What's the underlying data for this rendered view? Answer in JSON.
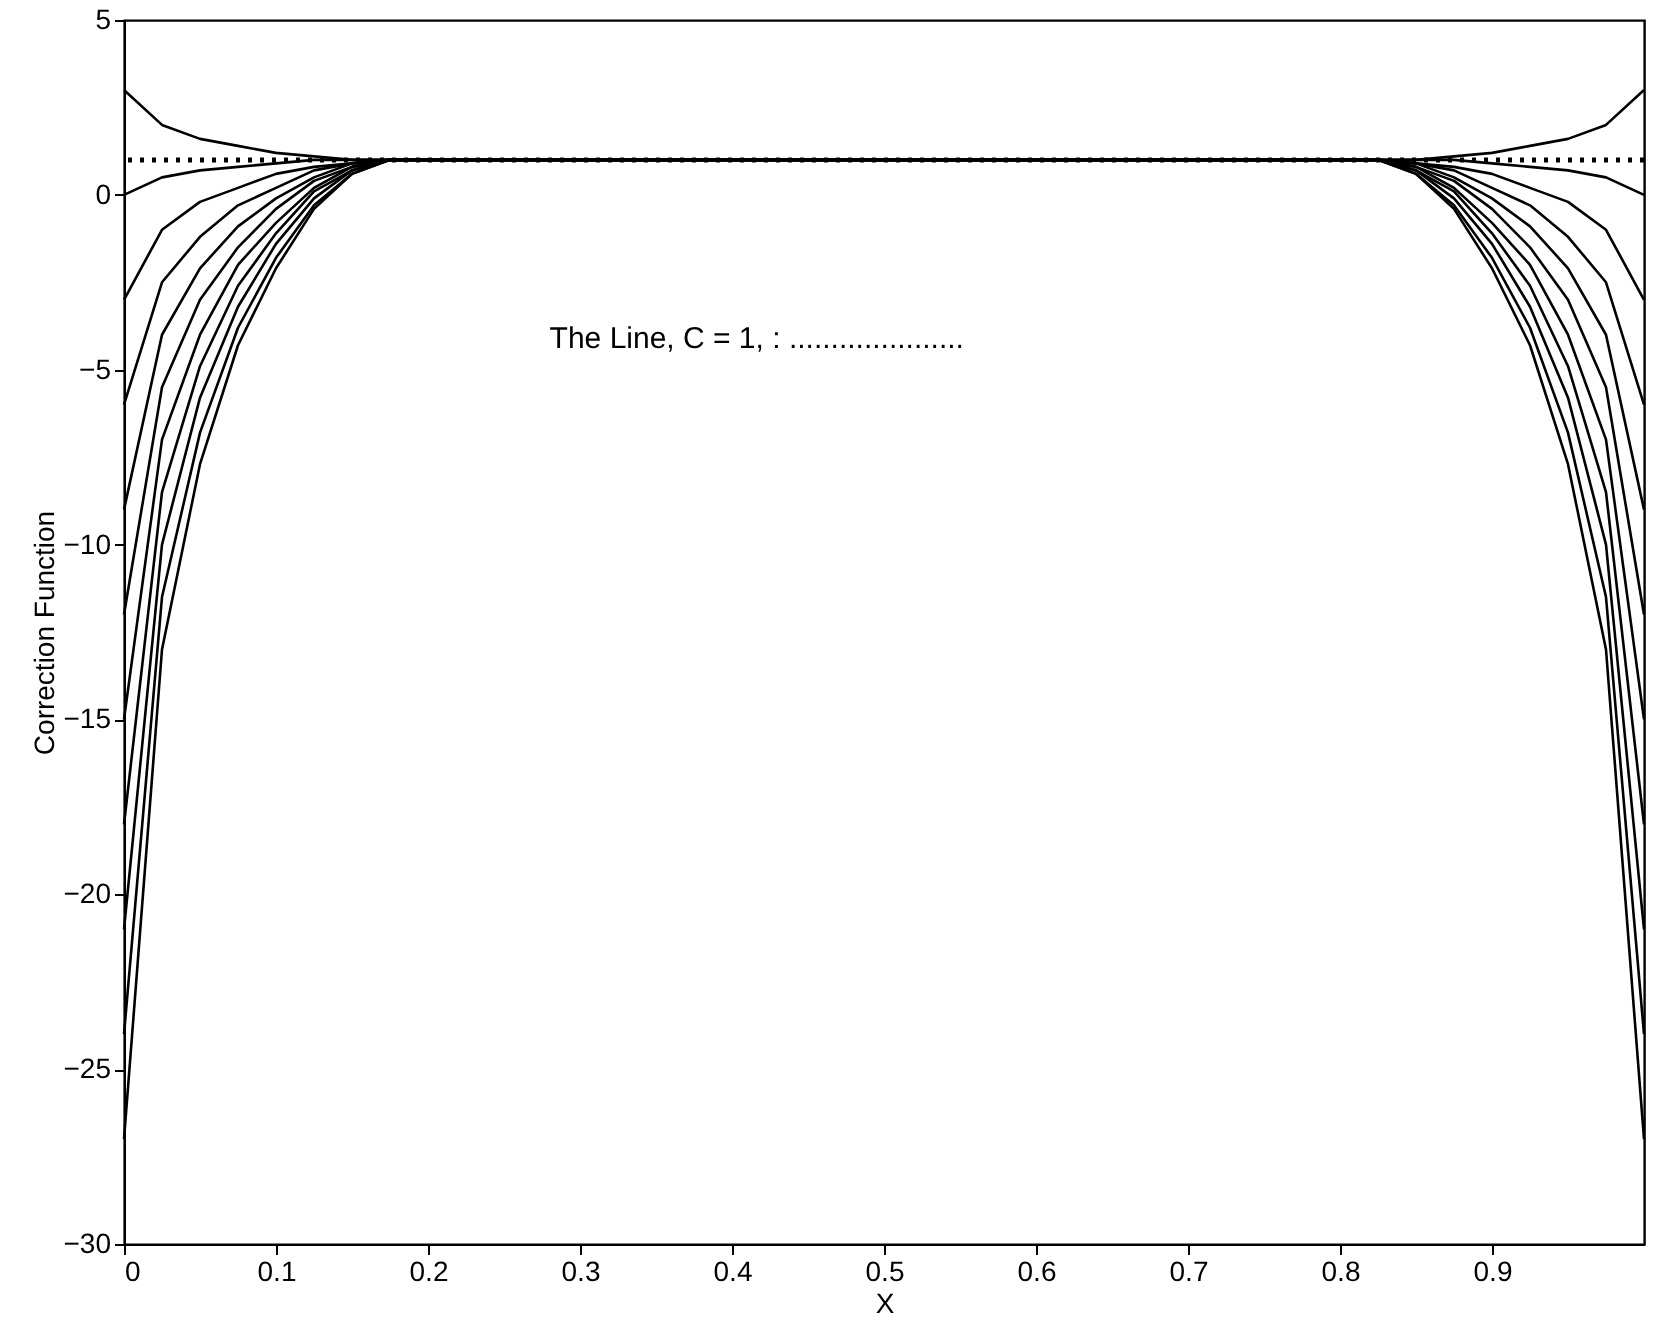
{
  "chart_data": {
    "type": "line",
    "xlabel": "X",
    "ylabel": "Correction Function",
    "annotations": [
      "The Line, C = 1, : ....................."
    ],
    "xlim": [
      0,
      1
    ],
    "xticks": [
      0,
      0.1,
      0.2,
      0.3,
      0.4,
      0.5,
      0.6,
      0.7,
      0.8,
      0.9
    ],
    "ylim": [
      -30,
      5
    ],
    "yticks": [
      -30,
      -25,
      -20,
      -15,
      -10,
      -5,
      0,
      5
    ],
    "grid": false,
    "marker": "none",
    "line_style": "solid",
    "x": [
      0,
      0.025,
      0.05,
      0.075,
      0.1,
      0.125,
      0.15,
      0.175,
      0.2,
      0.8,
      0.825,
      0.85,
      0.875,
      0.9,
      0.925,
      0.95,
      0.975,
      1
    ],
    "ref_lines": [
      {
        "axis": "y",
        "value": 1,
        "color": "#000000",
        "line_style": "dotted"
      }
    ],
    "series": [
      {
        "color": "#000000",
        "values": [
          3,
          2,
          1.6,
          1.4,
          1.2,
          1.1,
          1,
          1,
          1,
          1,
          1,
          1,
          1.1,
          1.2,
          1.4,
          1.6,
          2,
          3
        ]
      },
      {
        "color": "#000000",
        "values": [
          0,
          0.5,
          0.7,
          0.8,
          0.9,
          1,
          1,
          1,
          1,
          1,
          1,
          1,
          1,
          0.9,
          0.8,
          0.7,
          0.5,
          0
        ]
      },
      {
        "color": "#000000",
        "values": [
          -3,
          -1,
          -0.2,
          0.2,
          0.6,
          0.8,
          0.9,
          1,
          1,
          1,
          1,
          0.9,
          0.8,
          0.6,
          0.2,
          -0.2,
          -1,
          -3
        ]
      },
      {
        "color": "#000000",
        "values": [
          -6,
          -2.5,
          -1.2,
          -0.3,
          0.2,
          0.7,
          0.9,
          1,
          1,
          1,
          1,
          0.9,
          0.7,
          0.2,
          -0.3,
          -1.2,
          -2.5,
          -6
        ]
      },
      {
        "color": "#000000",
        "values": [
          -9,
          -4,
          -2.1,
          -0.9,
          -0.1,
          0.5,
          0.9,
          1,
          1,
          1,
          1,
          0.9,
          0.5,
          -0.1,
          -0.9,
          -2.1,
          -4,
          -9
        ]
      },
      {
        "color": "#000000",
        "values": [
          -12,
          -5.5,
          -3,
          -1.5,
          -0.4,
          0.4,
          0.8,
          1,
          1,
          1,
          1,
          0.8,
          0.4,
          -0.4,
          -1.5,
          -3,
          -5.5,
          -12
        ]
      },
      {
        "color": "#000000",
        "values": [
          -15,
          -7,
          -4,
          -2,
          -0.8,
          0.2,
          0.8,
          1,
          1,
          1,
          1,
          0.8,
          0.2,
          -0.8,
          -2,
          -4,
          -7,
          -15
        ]
      },
      {
        "color": "#000000",
        "values": [
          -18,
          -8.5,
          -4.9,
          -2.6,
          -1.1,
          0.1,
          0.7,
          1,
          1,
          1,
          1,
          0.7,
          0.1,
          -1.1,
          -2.6,
          -4.9,
          -8.5,
          -18
        ]
      },
      {
        "color": "#000000",
        "values": [
          -21,
          -10,
          -5.8,
          -3.2,
          -1.4,
          -0.1,
          0.7,
          1,
          1,
          1,
          1,
          0.7,
          -0.1,
          -1.4,
          -3.2,
          -5.8,
          -10,
          -21
        ]
      },
      {
        "color": "#000000",
        "values": [
          -24,
          -11.5,
          -6.8,
          -3.8,
          -1.8,
          -0.3,
          0.6,
          1,
          1,
          1,
          1,
          0.6,
          -0.3,
          -1.8,
          -3.8,
          -6.8,
          -11.5,
          -24
        ]
      },
      {
        "color": "#000000",
        "values": [
          -27,
          -13,
          -7.7,
          -4.3,
          -2.1,
          -0.4,
          0.6,
          1,
          1,
          1,
          1,
          0.6,
          -0.4,
          -2.1,
          -4.3,
          -7.7,
          -13,
          -27
        ]
      }
    ]
  }
}
